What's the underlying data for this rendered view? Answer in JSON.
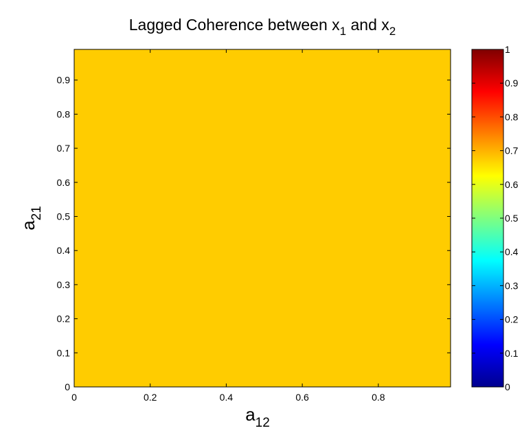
{
  "chart_data": {
    "type": "heatmap",
    "title": {
      "main": "Lagged Coherence between x",
      "sub1": "1",
      "mid": " and x",
      "sub2": "2"
    },
    "xlabel": {
      "main": "a",
      "sub": "12"
    },
    "ylabel": {
      "main": "a",
      "sub": "21"
    },
    "xlim": [
      0,
      0.99
    ],
    "ylim": [
      0,
      0.99
    ],
    "xticks": [
      0,
      0.2,
      0.4,
      0.6,
      0.8
    ],
    "xtick_labels": [
      "0",
      "0.2",
      "0.4",
      "0.6",
      "0.8"
    ],
    "yticks": [
      0,
      0.1,
      0.2,
      0.3,
      0.4,
      0.5,
      0.6,
      0.7,
      0.8,
      0.9
    ],
    "ytick_labels": [
      "0",
      "0.1",
      "0.2",
      "0.3",
      "0.4",
      "0.5",
      "0.6",
      "0.7",
      "0.8",
      "0.9"
    ],
    "value": 0.72,
    "fill_color": "#FFCC00",
    "colorbar": {
      "colormap": "jet",
      "clim": [
        0,
        1
      ],
      "ticks": [
        0,
        0.1,
        0.2,
        0.3,
        0.4,
        0.5,
        0.6,
        0.7,
        0.8,
        0.9,
        1
      ],
      "tick_labels": [
        "0",
        "0.1",
        "0.2",
        "0.3",
        "0.4",
        "0.5",
        "0.6",
        "0.7",
        "0.8",
        "0.9",
        "1"
      ]
    }
  }
}
